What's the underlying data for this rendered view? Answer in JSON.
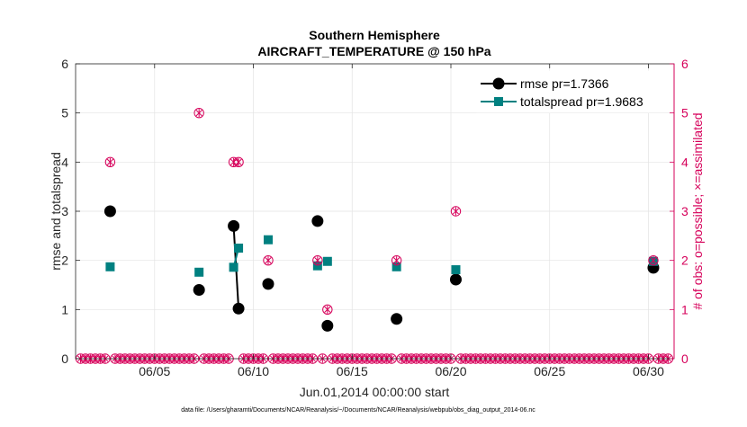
{
  "chart_data": {
    "type": "scatter",
    "title": "Southern Hemisphere",
    "subtitle": "AIRCRAFT_TEMPERATURE @ 150 hPa",
    "xlabel": "Jun.01,2014 00:00:00 start",
    "ylabel_left": "rmse and totalspread",
    "ylabel_right": "# of obs: o=possible; ×=assimilated",
    "footnote": "data file: /Users/gharamti/Documents/NCAR/Reanalysis/~/Documents/NCAR/Reanalysis/webpub/obs_diag_output_2014-06.nc",
    "xlim": [
      1,
      31.3
    ],
    "ylim": [
      0,
      6
    ],
    "ylim_right": [
      0,
      6
    ],
    "x_ticks": [
      5,
      10,
      15,
      20,
      25,
      30
    ],
    "x_tick_labels": [
      "06/05",
      "06/10",
      "06/15",
      "06/20",
      "06/25",
      "06/30"
    ],
    "y_ticks": [
      0,
      1,
      2,
      3,
      4,
      5,
      6
    ],
    "y_tick_labels": [
      "0",
      "1",
      "2",
      "3",
      "4",
      "5",
      "6"
    ],
    "grid": true,
    "legend_position": "top-right",
    "series": [
      {
        "name": "rmse pr=1.7366",
        "color": "#000000",
        "marker": "circle",
        "points": [
          [
            2.75,
            3.0
          ],
          [
            7.25,
            1.4
          ],
          [
            9.0,
            2.7
          ],
          [
            9.25,
            1.02
          ],
          [
            10.75,
            1.52
          ],
          [
            13.25,
            2.8
          ],
          [
            13.75,
            0.67
          ],
          [
            17.25,
            0.81
          ],
          [
            20.25,
            1.61
          ],
          [
            30.25,
            1.85
          ]
        ],
        "segments": [
          [
            [
              9.0,
              2.7
            ],
            [
              9.25,
              1.02
            ]
          ]
        ]
      },
      {
        "name": "totalspread pr=1.9683",
        "color": "#008080",
        "marker": "square",
        "points": [
          [
            2.75,
            1.87
          ],
          [
            7.25,
            1.76
          ],
          [
            9.0,
            1.86
          ],
          [
            9.25,
            2.25
          ],
          [
            10.75,
            2.42
          ],
          [
            13.25,
            1.89
          ],
          [
            13.75,
            1.98
          ],
          [
            17.25,
            1.87
          ],
          [
            20.25,
            1.81
          ],
          [
            30.25,
            1.98
          ]
        ],
        "segments": [
          [
            [
              9.0,
              1.86
            ],
            [
              9.25,
              2.25
            ]
          ]
        ]
      }
    ],
    "obs_counts": {
      "color": "#d6005a",
      "step": 0.25,
      "x_start": 1.25,
      "x_end": 31.0,
      "nonzero": [
        [
          2.75,
          4
        ],
        [
          7.25,
          5
        ],
        [
          9.0,
          4
        ],
        [
          9.25,
          4
        ],
        [
          10.75,
          2
        ],
        [
          13.25,
          2
        ],
        [
          13.75,
          1
        ],
        [
          17.25,
          2
        ],
        [
          20.25,
          3
        ],
        [
          30.25,
          2
        ]
      ]
    }
  }
}
